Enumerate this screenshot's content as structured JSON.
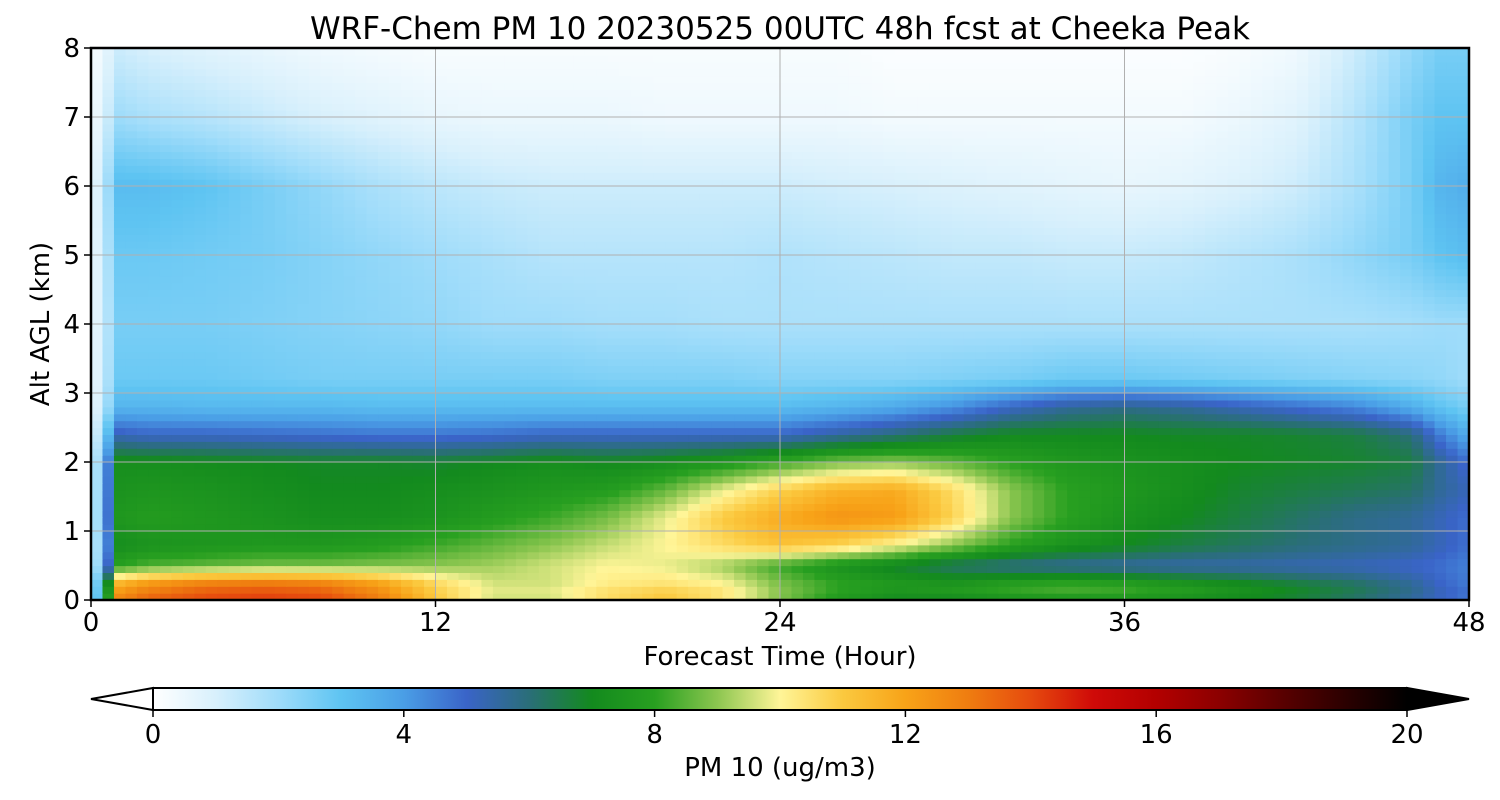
{
  "chart_data": {
    "type": "heatmap",
    "title": "WRF-Chem PM 10  20230525 00UTC 48h fcst at Cheeka Peak",
    "xlabel": "Forecast Time (Hour)",
    "ylabel": "Alt AGL (km)",
    "xlim": [
      0,
      48
    ],
    "ylim": [
      0,
      8
    ],
    "x_ticks": [
      "0",
      "12",
      "24",
      "36",
      "48"
    ],
    "y_ticks": [
      "0",
      "1",
      "2",
      "3",
      "4",
      "5",
      "6",
      "7",
      "8"
    ],
    "grid": true,
    "x": [
      0,
      1,
      2,
      4,
      6,
      8,
      10,
      12,
      14,
      16,
      18,
      20,
      22,
      24,
      26,
      28,
      30,
      32,
      34,
      36,
      38,
      40,
      42,
      44,
      46,
      47,
      48
    ],
    "y": [
      0,
      0.1,
      0.25,
      0.5,
      0.8,
      1.2,
      1.6,
      2,
      2.4,
      2.8,
      3.2,
      4,
      5,
      6,
      7,
      8
    ],
    "z": [
      [
        0.5,
        12.8,
        13.5,
        14.0,
        14.2,
        14.0,
        13.0,
        11.0,
        9.5,
        9.5,
        10.5,
        11.0,
        10.2,
        8.8,
        7.6,
        7.0,
        6.8,
        7.0,
        7.2,
        7.2,
        7.0,
        6.8,
        6.5,
        6.0,
        5.4,
        5.0,
        4.6
      ],
      [
        0.5,
        12.5,
        13.2,
        13.8,
        14.0,
        13.8,
        12.8,
        11.0,
        9.8,
        9.8,
        10.6,
        11.0,
        10.5,
        9.0,
        8.0,
        7.5,
        7.8,
        8.2,
        8.4,
        8.3,
        8.0,
        7.5,
        7.0,
        6.5,
        5.8,
        5.2,
        4.8
      ],
      [
        0.5,
        11.5,
        12.2,
        12.8,
        13.0,
        12.8,
        12.0,
        10.6,
        9.6,
        9.6,
        10.2,
        10.4,
        10.0,
        8.8,
        8.0,
        7.6,
        7.4,
        7.8,
        8.0,
        7.8,
        7.4,
        7.0,
        6.6,
        6.2,
        5.6,
        5.0,
        4.6
      ],
      [
        0.5,
        8.0,
        8.4,
        8.6,
        8.8,
        8.8,
        8.9,
        9.0,
        9.2,
        9.6,
        10.0,
        9.8,
        9.2,
        8.2,
        7.4,
        6.8,
        6.2,
        5.8,
        5.6,
        5.5,
        5.4,
        5.4,
        5.3,
        5.2,
        5.0,
        4.8,
        4.5
      ],
      [
        0.5,
        7.2,
        7.4,
        7.5,
        7.6,
        7.6,
        7.8,
        8.2,
        8.6,
        9.0,
        9.5,
        10.0,
        10.6,
        11.2,
        10.8,
        10.0,
        9.0,
        8.0,
        7.4,
        7.0,
        6.6,
        6.3,
        6.0,
        5.8,
        5.6,
        5.2,
        4.8
      ],
      [
        0.5,
        7.6,
        7.8,
        7.6,
        7.4,
        7.2,
        7.2,
        7.4,
        7.8,
        8.2,
        8.8,
        9.8,
        11.0,
        11.8,
        12.4,
        12.2,
        10.8,
        9.0,
        8.0,
        7.4,
        7.0,
        6.6,
        6.2,
        5.8,
        5.6,
        5.2,
        4.8
      ],
      [
        0.5,
        7.4,
        7.5,
        7.4,
        7.2,
        7.0,
        7.0,
        7.2,
        7.4,
        7.6,
        7.8,
        8.6,
        9.8,
        10.8,
        11.6,
        11.8,
        10.6,
        9.0,
        8.0,
        7.6,
        7.2,
        6.8,
        6.6,
        6.4,
        6.2,
        5.6,
        5.2
      ],
      [
        0.5,
        7.2,
        7.2,
        7.1,
        7.0,
        6.9,
        6.9,
        6.8,
        7.0,
        7.2,
        7.0,
        7.2,
        7.6,
        8.2,
        8.8,
        9.0,
        8.6,
        8.0,
        7.6,
        7.4,
        7.2,
        7.0,
        6.9,
        6.8,
        6.6,
        5.6,
        4.8
      ],
      [
        0.4,
        5.2,
        5.0,
        5.0,
        4.9,
        4.8,
        4.7,
        4.7,
        4.8,
        5.0,
        5.0,
        5.0,
        5.0,
        5.0,
        5.5,
        6.0,
        6.6,
        7.0,
        7.0,
        7.0,
        6.9,
        6.9,
        6.8,
        6.6,
        6.0,
        4.6,
        3.6
      ],
      [
        0.3,
        3.4,
        3.4,
        3.3,
        3.3,
        3.3,
        3.2,
        3.2,
        3.2,
        3.2,
        3.2,
        3.2,
        3.2,
        3.2,
        3.4,
        3.7,
        4.2,
        5.0,
        5.6,
        5.8,
        5.6,
        5.2,
        4.8,
        4.4,
        3.6,
        3.0,
        2.6
      ],
      [
        0.3,
        2.8,
        2.8,
        2.8,
        2.7,
        2.6,
        2.6,
        2.6,
        2.6,
        2.6,
        2.5,
        2.5,
        2.5,
        2.4,
        2.4,
        2.4,
        2.5,
        2.6,
        2.8,
        2.8,
        2.7,
        2.6,
        2.5,
        2.4,
        2.3,
        2.2,
        2.0
      ],
      [
        0.3,
        2.6,
        2.6,
        2.6,
        2.5,
        2.4,
        2.3,
        2.2,
        2.0,
        2.0,
        1.9,
        1.9,
        1.8,
        1.8,
        1.8,
        1.8,
        1.8,
        1.8,
        1.8,
        1.8,
        1.8,
        1.8,
        1.8,
        1.8,
        1.9,
        2.0,
        2.0
      ],
      [
        0.3,
        2.8,
        2.8,
        2.7,
        2.6,
        2.4,
        2.2,
        2.0,
        1.8,
        1.6,
        1.6,
        1.6,
        1.6,
        1.7,
        1.6,
        1.5,
        1.4,
        1.4,
        1.3,
        1.3,
        1.4,
        1.6,
        1.8,
        2.2,
        2.6,
        3.0,
        3.2
      ],
      [
        0.3,
        3.2,
        3.2,
        3.0,
        2.6,
        2.2,
        1.8,
        1.5,
        1.3,
        1.2,
        1.2,
        1.2,
        1.2,
        1.2,
        1.1,
        1.0,
        0.9,
        0.8,
        0.7,
        0.6,
        0.7,
        0.9,
        1.2,
        1.8,
        2.6,
        3.4,
        3.6
      ],
      [
        0.2,
        2.0,
        1.8,
        1.6,
        1.3,
        1.0,
        0.8,
        0.6,
        0.5,
        0.5,
        0.5,
        0.4,
        0.4,
        0.4,
        0.4,
        0.3,
        0.3,
        0.3,
        0.3,
        0.3,
        0.3,
        0.5,
        0.8,
        1.6,
        2.6,
        3.0,
        3.0
      ],
      [
        0.1,
        1.2,
        1.0,
        0.8,
        0.6,
        0.4,
        0.3,
        0.2,
        0.2,
        0.2,
        0.2,
        0.2,
        0.2,
        0.2,
        0.2,
        0.1,
        0.1,
        0.1,
        0.1,
        0.1,
        0.1,
        0.2,
        0.4,
        1.2,
        2.2,
        2.6,
        2.6
      ]
    ],
    "colorbar": {
      "label": "PM 10  (ug/m3)",
      "ticks": [
        "0",
        "4",
        "8",
        "12",
        "16",
        "20"
      ],
      "range": [
        0,
        20
      ],
      "extend": "both",
      "colors": [
        {
          "v": 0,
          "c": "#ffffff"
        },
        {
          "v": 1,
          "c": "#d8f0fc"
        },
        {
          "v": 2,
          "c": "#9fdcfa"
        },
        {
          "v": 3,
          "c": "#5ec4f2"
        },
        {
          "v": 4,
          "c": "#4a9ee6"
        },
        {
          "v": 5,
          "c": "#3a64c8"
        },
        {
          "v": 6,
          "c": "#2a6e78"
        },
        {
          "v": 7,
          "c": "#138a1e"
        },
        {
          "v": 8,
          "c": "#28a020"
        },
        {
          "v": 9,
          "c": "#8cc650"
        },
        {
          "v": 10,
          "c": "#fff598"
        },
        {
          "v": 11,
          "c": "#fbc93f"
        },
        {
          "v": 12,
          "c": "#f8a318"
        },
        {
          "v": 13,
          "c": "#ef7d10"
        },
        {
          "v": 14,
          "c": "#e64a0e"
        },
        {
          "v": 15,
          "c": "#cf0a08"
        },
        {
          "v": 16,
          "c": "#b30000"
        },
        {
          "v": 17,
          "c": "#8c0000"
        },
        {
          "v": 18,
          "c": "#5a0000"
        },
        {
          "v": 19,
          "c": "#2c0000"
        },
        {
          "v": 20,
          "c": "#000000"
        }
      ]
    }
  }
}
